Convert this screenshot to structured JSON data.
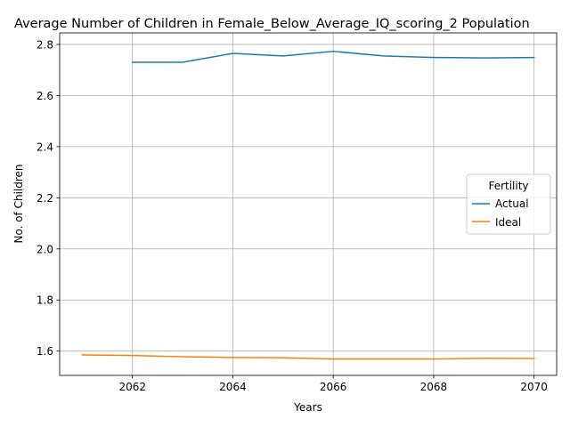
{
  "chart_data": {
    "type": "line",
    "title": "Average Number of Children in Female_Below_Average_IQ_scoring_2 Population",
    "xlabel": "Years",
    "ylabel": "No. of Children",
    "xlim": [
      2060.55,
      2070.45
    ],
    "ylim": [
      1.505,
      2.845
    ],
    "x_ticks": [
      2062,
      2064,
      2066,
      2068,
      2070
    ],
    "y_ticks": [
      1.6,
      1.8,
      2.0,
      2.2,
      2.4,
      2.6,
      2.8
    ],
    "grid": true,
    "legend": {
      "title": "Fertility",
      "position": "center-right"
    },
    "series": [
      {
        "name": "Actual",
        "color": "#1f77b4",
        "x": [
          2062,
          2063,
          2064,
          2065,
          2066,
          2067,
          2068,
          2069,
          2070
        ],
        "values": [
          2.73,
          2.73,
          2.765,
          2.755,
          2.773,
          2.755,
          2.749,
          2.747,
          2.749
        ]
      },
      {
        "name": "Ideal",
        "color": "#ff7f0e",
        "x": [
          2061,
          2062,
          2063,
          2064,
          2065,
          2066,
          2067,
          2068,
          2069,
          2070
        ],
        "values": [
          1.585,
          1.583,
          1.578,
          1.575,
          1.574,
          1.569,
          1.569,
          1.569,
          1.572,
          1.571
        ]
      }
    ]
  }
}
